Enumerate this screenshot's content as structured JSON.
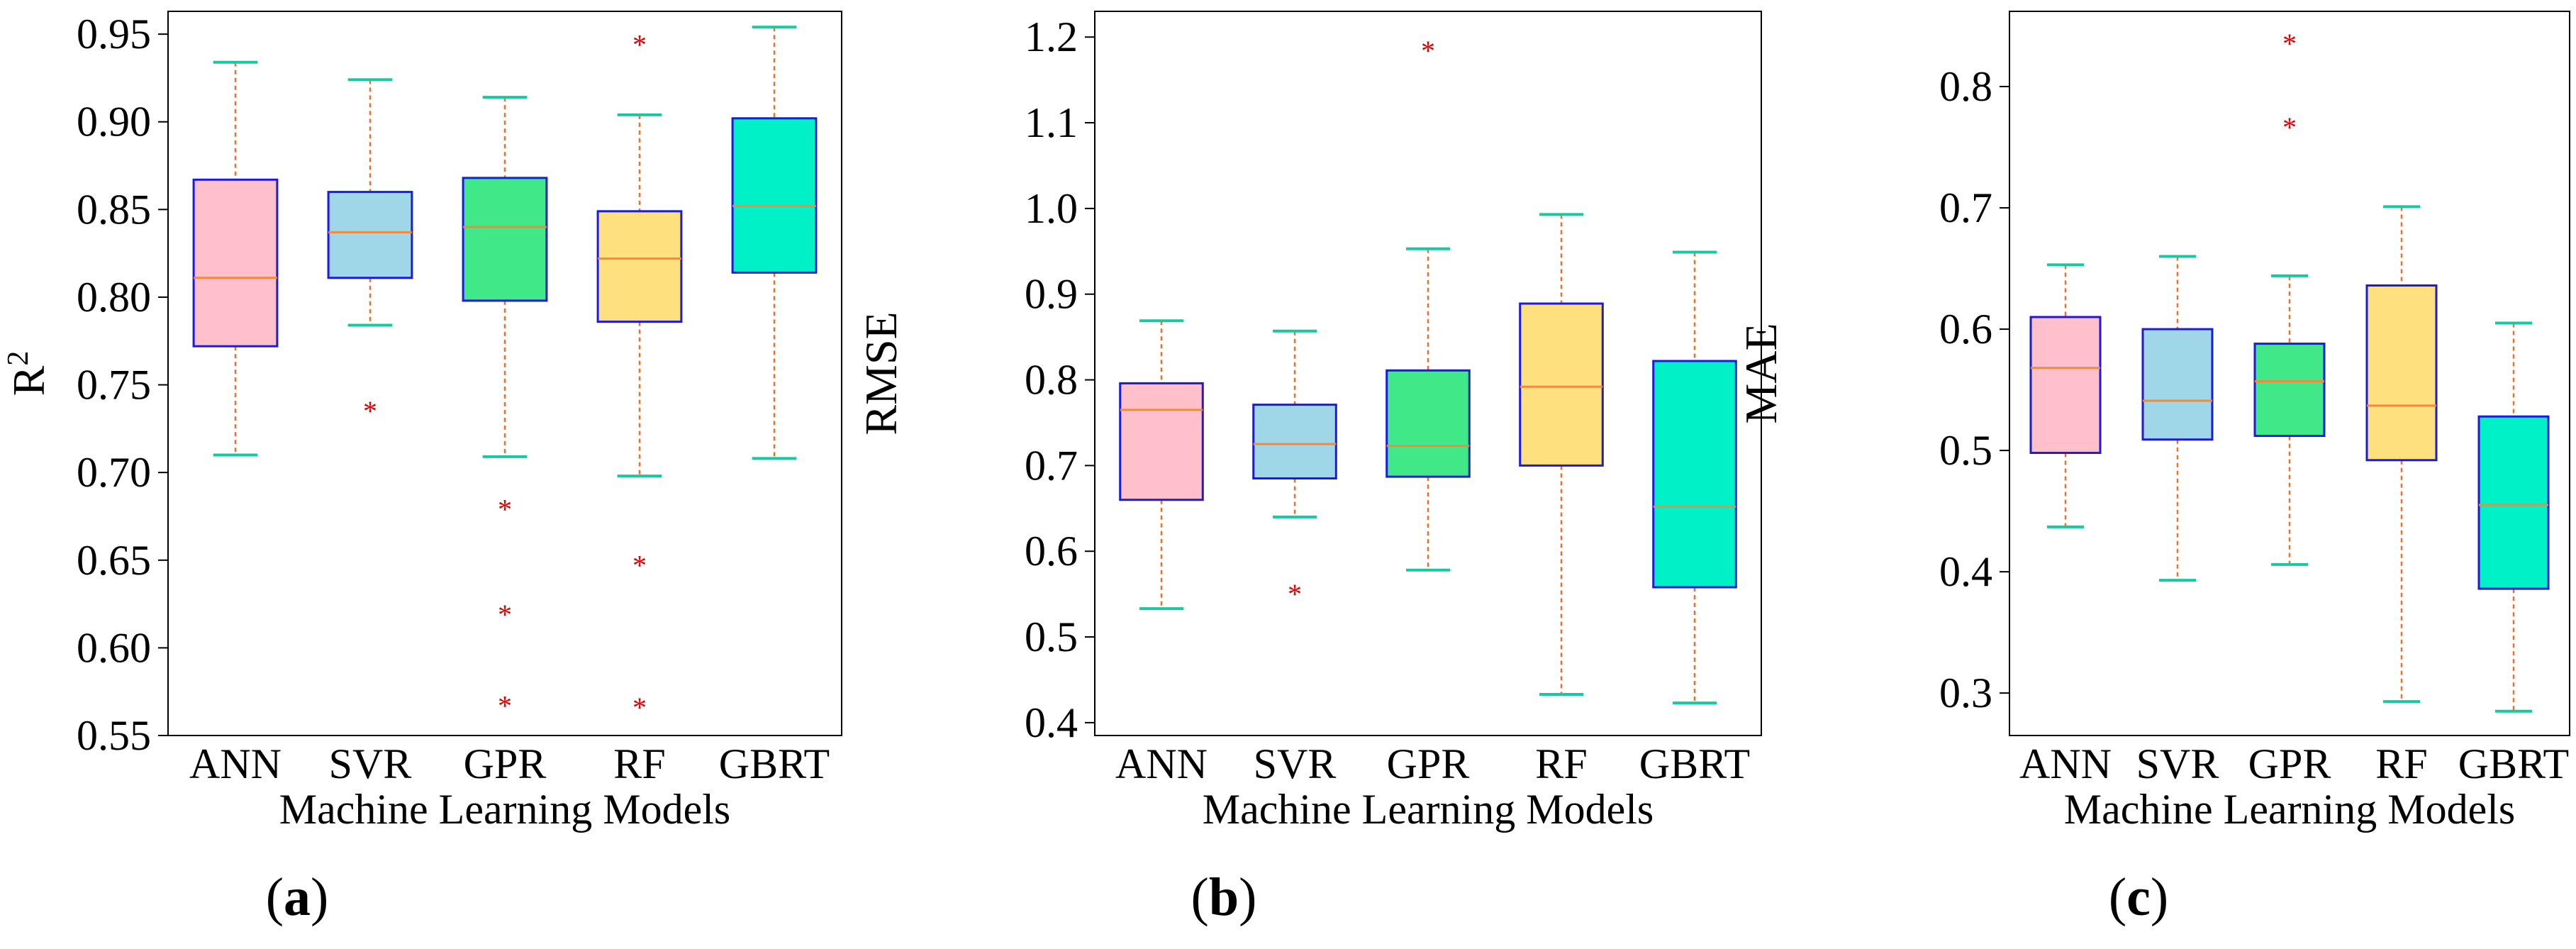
{
  "figure": {
    "panels": [
      {
        "caption_open": "(",
        "caption_letter": "a",
        "caption_close": ")"
      },
      {
        "caption_open": "(",
        "caption_letter": "b",
        "caption_close": ")"
      },
      {
        "caption_open": "(",
        "caption_letter": "c",
        "caption_close": ")"
      }
    ]
  },
  "chart_data": [
    {
      "type": "box",
      "title": "",
      "xlabel": "Machine Learning Models",
      "ylabel": "R",
      "ylabel_superscript": "2",
      "ylim": [
        0.55,
        0.963
      ],
      "yticks": [
        0.55,
        0.6,
        0.65,
        0.7,
        0.75,
        0.8,
        0.85,
        0.9,
        0.95
      ],
      "ytick_labels": [
        "0.55",
        "0.60",
        "0.65",
        "0.70",
        "0.75",
        "0.80",
        "0.85",
        "0.90",
        "0.95"
      ],
      "categories": [
        "ANN",
        "SVR",
        "GPR",
        "RF",
        "GBRT"
      ],
      "colors": [
        "#ffc0cb",
        "#9fd7e8",
        "#40e888",
        "#ffe07e",
        "#00f0c8"
      ],
      "boxes": [
        {
          "whisker_low": 0.71,
          "q1": 0.772,
          "median": 0.811,
          "q3": 0.867,
          "whisker_high": 0.934,
          "outliers": []
        },
        {
          "whisker_low": 0.784,
          "q1": 0.811,
          "median": 0.837,
          "q3": 0.86,
          "whisker_high": 0.924,
          "outliers": [
            0.736
          ]
        },
        {
          "whisker_low": 0.709,
          "q1": 0.798,
          "median": 0.84,
          "q3": 0.868,
          "whisker_high": 0.914,
          "outliers": [
            0.68,
            0.62,
            0.568
          ]
        },
        {
          "whisker_low": 0.698,
          "q1": 0.786,
          "median": 0.822,
          "q3": 0.849,
          "whisker_high": 0.904,
          "outliers": [
            0.945,
            0.648,
            0.567
          ]
        },
        {
          "whisker_low": 0.708,
          "q1": 0.814,
          "median": 0.852,
          "q3": 0.902,
          "whisker_high": 0.954,
          "outliers": []
        }
      ]
    },
    {
      "type": "box",
      "title": "",
      "xlabel": "Machine Learning Models",
      "ylabel": "RMSE",
      "ylabel_superscript": "",
      "ylim": [
        0.385,
        1.23
      ],
      "yticks": [
        0.4,
        0.5,
        0.6,
        0.7,
        0.8,
        0.9,
        1.0,
        1.1,
        1.2
      ],
      "ytick_labels": [
        "0.4",
        "0.5",
        "0.6",
        "0.7",
        "0.8",
        "0.9",
        "1.0",
        "1.1",
        "1.2"
      ],
      "categories": [
        "ANN",
        "SVR",
        "GPR",
        "RF",
        "GBRT"
      ],
      "colors": [
        "#ffc0cb",
        "#9fd7e8",
        "#40e888",
        "#ffe07e",
        "#00f0c8"
      ],
      "boxes": [
        {
          "whisker_low": 0.533,
          "q1": 0.66,
          "median": 0.765,
          "q3": 0.796,
          "whisker_high": 0.869,
          "outliers": []
        },
        {
          "whisker_low": 0.64,
          "q1": 0.685,
          "median": 0.725,
          "q3": 0.771,
          "whisker_high": 0.857,
          "outliers": [
            0.552
          ]
        },
        {
          "whisker_low": 0.578,
          "q1": 0.687,
          "median": 0.723,
          "q3": 0.811,
          "whisker_high": 0.953,
          "outliers": [
            1.186
          ]
        },
        {
          "whisker_low": 0.433,
          "q1": 0.7,
          "median": 0.792,
          "q3": 0.889,
          "whisker_high": 0.993,
          "outliers": []
        },
        {
          "whisker_low": 0.423,
          "q1": 0.558,
          "median": 0.652,
          "q3": 0.822,
          "whisker_high": 0.949,
          "outliers": []
        }
      ]
    },
    {
      "type": "box",
      "title": "",
      "xlabel": "Machine Learning Models",
      "ylabel": "MAE",
      "ylabel_superscript": "",
      "ylim": [
        0.265,
        0.862
      ],
      "yticks": [
        0.3,
        0.4,
        0.5,
        0.6,
        0.7,
        0.8
      ],
      "ytick_labels": [
        "0.3",
        "0.4",
        "0.5",
        "0.6",
        "0.7",
        "0.8"
      ],
      "categories": [
        "ANN",
        "SVR",
        "GPR",
        "RF",
        "GBRT"
      ],
      "colors": [
        "#ffc0cb",
        "#9fd7e8",
        "#40e888",
        "#ffe07e",
        "#00f0c8"
      ],
      "boxes": [
        {
          "whisker_low": 0.437,
          "q1": 0.498,
          "median": 0.568,
          "q3": 0.61,
          "whisker_high": 0.653,
          "outliers": []
        },
        {
          "whisker_low": 0.393,
          "q1": 0.509,
          "median": 0.541,
          "q3": 0.6,
          "whisker_high": 0.66,
          "outliers": []
        },
        {
          "whisker_low": 0.406,
          "q1": 0.512,
          "median": 0.557,
          "q3": 0.588,
          "whisker_high": 0.644,
          "outliers": [
            0.837,
            0.768
          ]
        },
        {
          "whisker_low": 0.293,
          "q1": 0.492,
          "median": 0.537,
          "q3": 0.636,
          "whisker_high": 0.701,
          "outliers": []
        },
        {
          "whisker_low": 0.285,
          "q1": 0.386,
          "median": 0.455,
          "q3": 0.528,
          "whisker_high": 0.605,
          "outliers": []
        }
      ]
    }
  ]
}
